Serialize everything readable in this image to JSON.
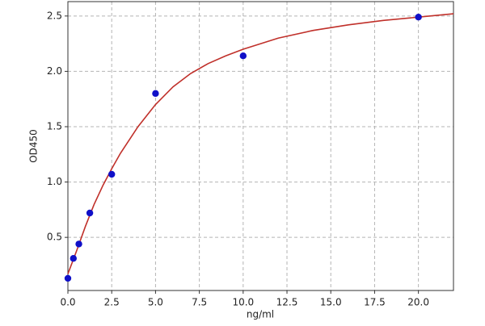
{
  "chart_data": {
    "type": "scatter",
    "x_label": "ng/ml",
    "y_label": "OD450",
    "points": {
      "color": "#1010c8",
      "x": [
        0,
        0.3125,
        0.625,
        1.25,
        2.5,
        5,
        10,
        20
      ],
      "y": [
        0.13,
        0.31,
        0.44,
        0.72,
        1.07,
        1.8,
        2.14,
        2.49
      ]
    },
    "curve": {
      "color": "#c0302a",
      "x": [
        0,
        0.5,
        1,
        1.5,
        2,
        2.5,
        3,
        4,
        5,
        6,
        7,
        8,
        9,
        10,
        12,
        14,
        16,
        18,
        20,
        22
      ],
      "y": [
        0.17,
        0.38,
        0.6,
        0.8,
        0.97,
        1.12,
        1.26,
        1.5,
        1.7,
        1.86,
        1.98,
        2.07,
        2.14,
        2.2,
        2.3,
        2.37,
        2.42,
        2.46,
        2.49,
        2.52
      ]
    },
    "xlim": [
      0,
      22
    ],
    "ylim": [
      0.02,
      2.63
    ],
    "xticks": [
      {
        "value": 0,
        "label": "0.0"
      },
      2.5,
      {
        "value": 5,
        "label": "5.0"
      },
      7.5,
      {
        "value": 10,
        "label": "10.0"
      },
      12.5,
      {
        "value": 15,
        "label": "15.0"
      },
      17.5,
      {
        "value": 20,
        "label": "20.0"
      }
    ],
    "yticks": [
      0.5,
      {
        "value": 1,
        "label": "1.0"
      },
      1.5,
      {
        "value": 2,
        "label": "2.0"
      },
      2.5
    ],
    "grid": true
  }
}
